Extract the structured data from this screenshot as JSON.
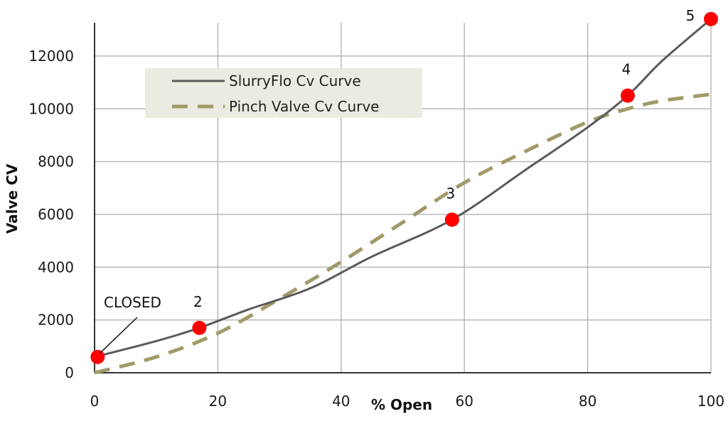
{
  "chart_data": {
    "type": "line",
    "xlabel": "% Open",
    "ylabel": "Valve CV",
    "xlim": [
      0,
      100
    ],
    "ylim": [
      0,
      13800
    ],
    "x_ticks": [
      0,
      20,
      40,
      60,
      80,
      100
    ],
    "y_ticks": [
      0,
      2000,
      4000,
      6000,
      8000,
      10000,
      12000
    ],
    "grid": true,
    "legend_position": "top-left",
    "series": [
      {
        "name": "SlurryFlo Cv Curve",
        "style": "solid",
        "color": "#5a5a5a",
        "x": [
          0,
          10,
          17,
          25,
          35,
          45,
          58,
          70,
          80,
          86.5,
          92,
          100
        ],
        "y": [
          600,
          1200,
          1700,
          2400,
          3200,
          4400,
          5800,
          7700,
          9300,
          10500,
          11800,
          13400
        ]
      },
      {
        "name": "Pinch Valve Cv Curve",
        "style": "dashed",
        "color": "#a09a68",
        "x": [
          0,
          10,
          20,
          30,
          40,
          50,
          60,
          70,
          80,
          86.5,
          92,
          100
        ],
        "y": [
          0,
          600,
          1500,
          2800,
          4200,
          5700,
          7200,
          8400,
          9500,
          10000,
          10300,
          10550
        ]
      }
    ],
    "points": [
      {
        "label": "CLOSED",
        "x": 0.5,
        "y": 600
      },
      {
        "label": "2",
        "x": 17,
        "y": 1700
      },
      {
        "label": "3",
        "x": 58,
        "y": 5800
      },
      {
        "label": "4",
        "x": 86.5,
        "y": 10500
      },
      {
        "label": "5",
        "x": 100,
        "y": 13400
      }
    ],
    "point_color": "#ff0000"
  }
}
